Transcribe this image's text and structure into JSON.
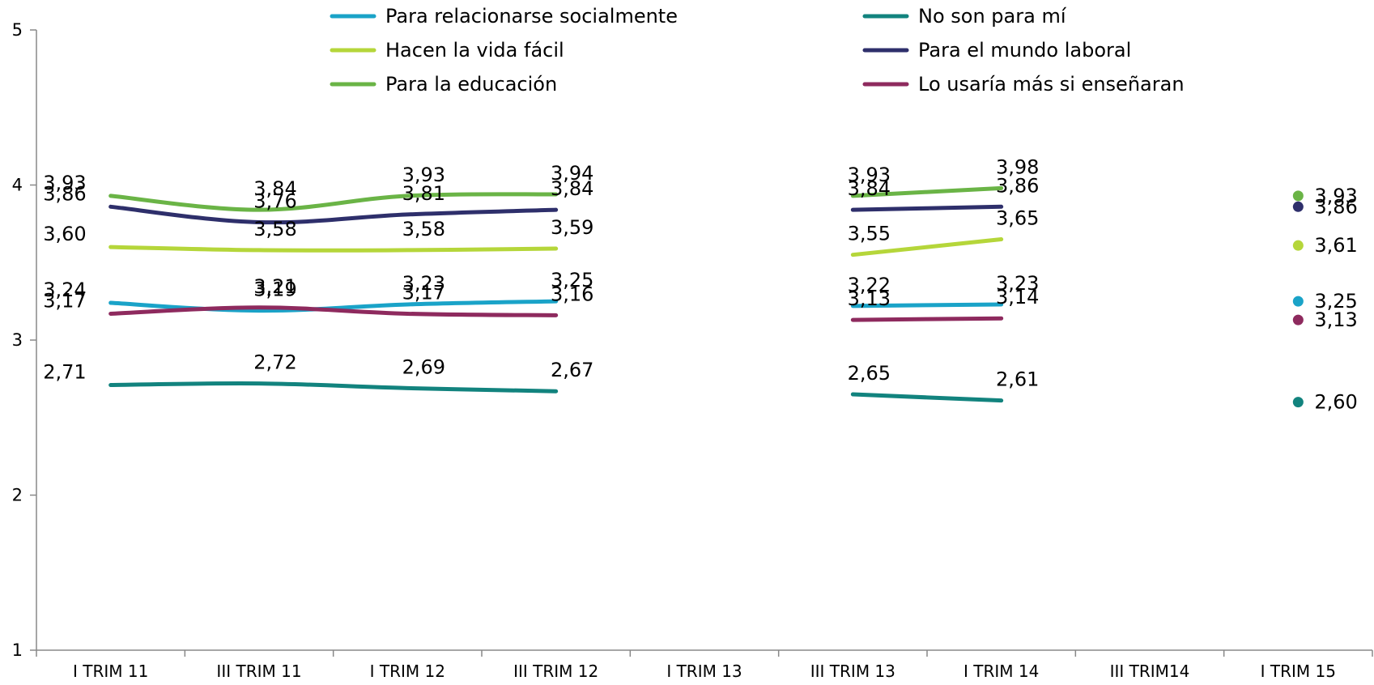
{
  "chart_data": {
    "type": "line",
    "title": "",
    "xlabel": "",
    "ylabel": "",
    "categories": [
      "I TRIM 11",
      "III TRIM 11",
      "I TRIM 12",
      "III TRIM 12",
      "I TRIM 13",
      "III TRIM 13",
      "I TRIM 14",
      "III TRIM14",
      "I TRIM 15"
    ],
    "ylim": [
      1,
      5
    ],
    "yticks": [
      "1",
      "2",
      "3",
      "4",
      "5"
    ],
    "grid": false,
    "legend_position": "top",
    "series": [
      {
        "name": "Para relacionarse socialmente",
        "color": "#1aa3c8",
        "values": [
          3.24,
          3.19,
          3.23,
          3.25,
          null,
          3.22,
          3.23,
          null,
          3.25
        ],
        "labels": [
          "3,24",
          "3,19",
          "3,23",
          "3,25",
          null,
          "3,22",
          "3,23",
          null,
          "3,25"
        ]
      },
      {
        "name": "No son para mí",
        "color": "#12837e",
        "values": [
          2.71,
          2.72,
          2.69,
          2.67,
          null,
          2.65,
          2.61,
          null,
          2.6
        ],
        "labels": [
          "2,71",
          "2,72",
          "2,69",
          "2,67",
          null,
          "2,65",
          "2,61",
          null,
          "2,60"
        ]
      },
      {
        "name": "Hacen la vida fácil",
        "color": "#b5d63a",
        "values": [
          3.6,
          3.58,
          3.58,
          3.59,
          null,
          3.55,
          3.65,
          null,
          3.61
        ],
        "labels": [
          "3,60",
          "3,58",
          "3,58",
          "3,59",
          null,
          "3,55",
          "3,65",
          null,
          "3,61"
        ]
      },
      {
        "name": "Para el mundo laboral",
        "color": "#2e2f6b",
        "values": [
          3.86,
          3.76,
          3.81,
          3.84,
          null,
          3.84,
          3.86,
          null,
          3.86
        ],
        "labels": [
          "3,86",
          "3,76",
          "3,81",
          "3,84",
          null,
          "3,84",
          "3,86",
          null,
          "3,86"
        ]
      },
      {
        "name": "Para la educación",
        "color": "#6ab446",
        "values": [
          3.93,
          3.84,
          3.93,
          3.94,
          null,
          3.93,
          3.98,
          null,
          3.93
        ],
        "labels": [
          "3,93",
          "3,84",
          "3,93",
          "3,94",
          null,
          "3,93",
          "3,98",
          null,
          "3,93"
        ]
      },
      {
        "name": "Lo usaría más si enseñaran",
        "color": "#8e2a5e",
        "values": [
          3.17,
          3.21,
          3.17,
          3.16,
          null,
          3.13,
          3.14,
          null,
          3.13
        ],
        "labels": [
          "3,17",
          "3,21",
          "3,17",
          "3,16",
          null,
          "3,13",
          "3,14",
          null,
          "3,13"
        ]
      }
    ]
  }
}
